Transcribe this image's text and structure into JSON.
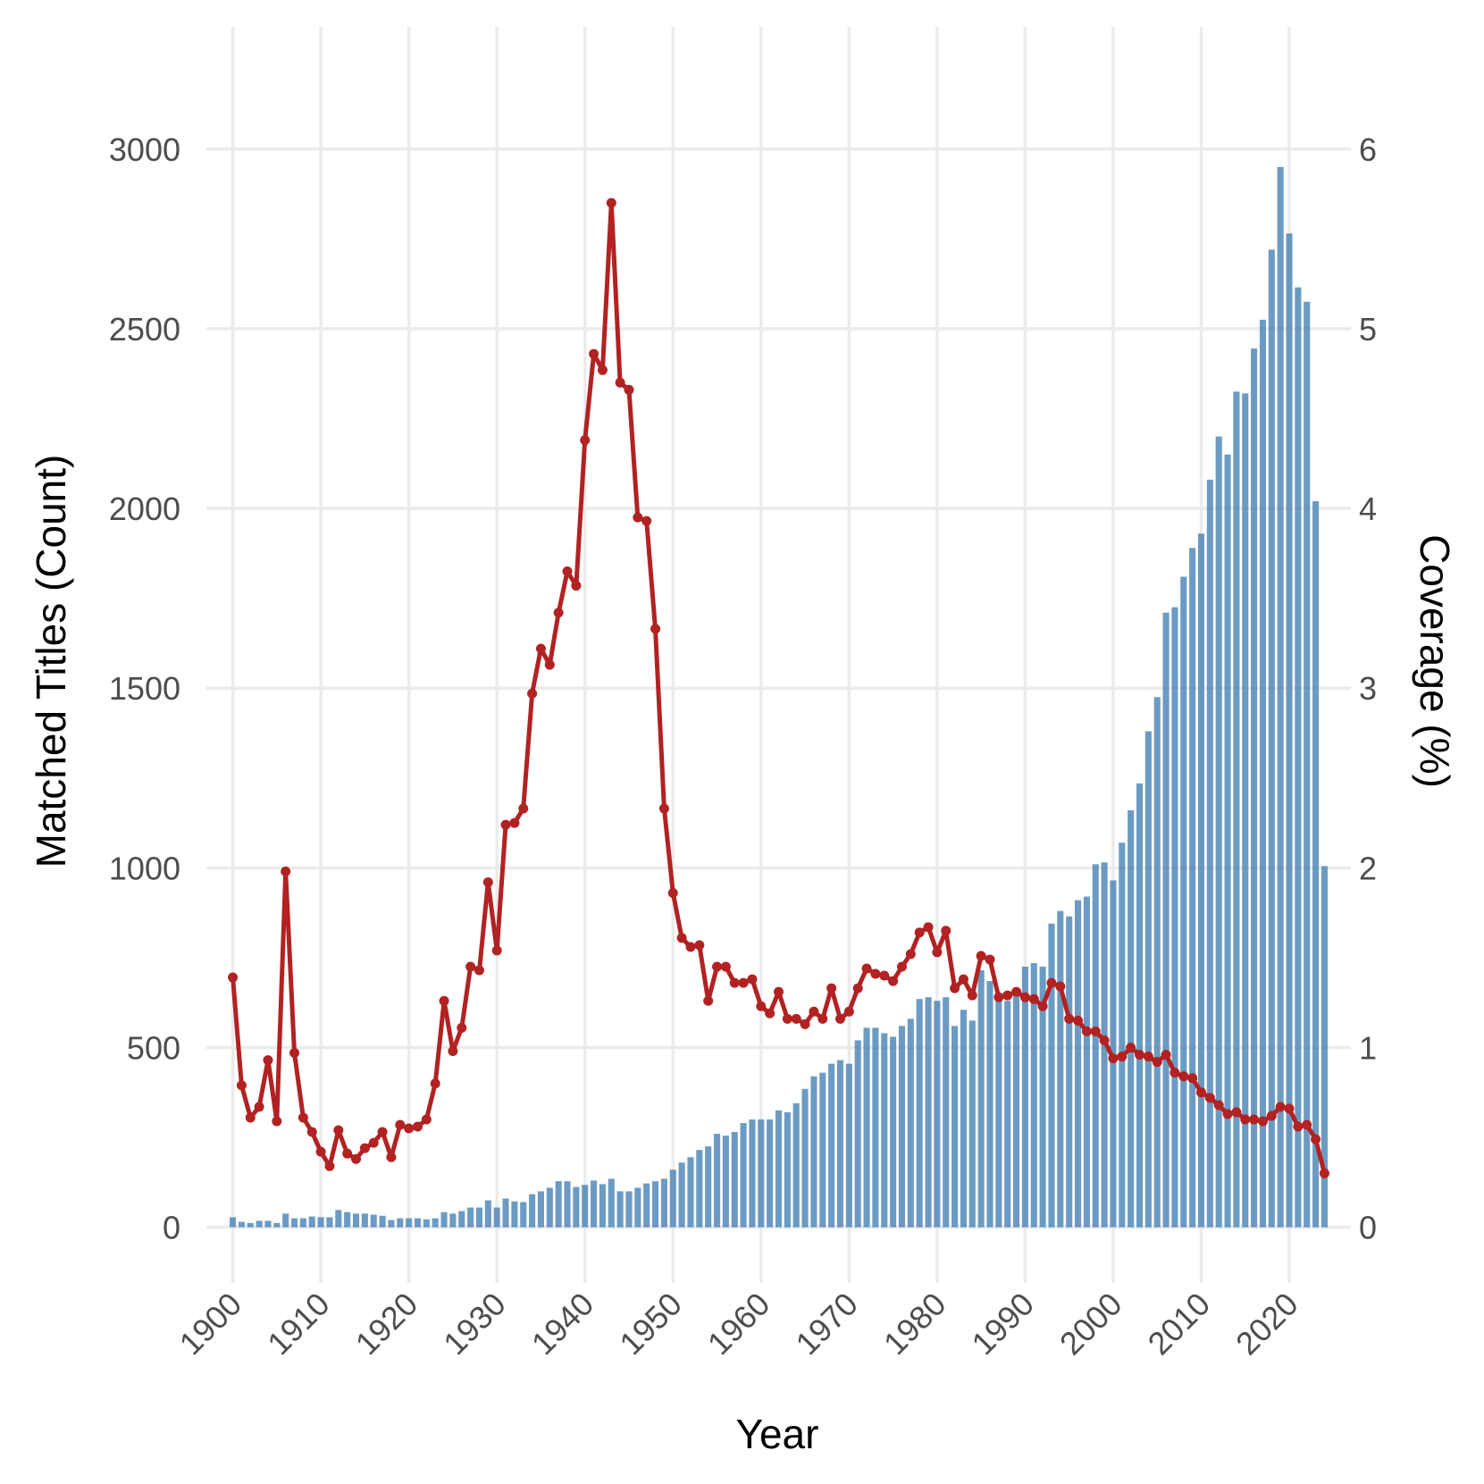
{
  "chart_data": {
    "type": "bar",
    "xlabel": "Year",
    "ylabel": "Matched Titles (Count)",
    "y2label": "Coverage (%)",
    "x_ticks": [
      1900,
      1910,
      1920,
      1930,
      1940,
      1950,
      1960,
      1970,
      1980,
      1990,
      2000,
      2010,
      2020
    ],
    "y_ticks": [
      0,
      500,
      1000,
      1500,
      2000,
      2500,
      3000
    ],
    "y2_ticks": [
      0,
      1,
      2,
      3,
      4,
      5,
      6
    ],
    "xlim": [
      1897,
      2027
    ],
    "ylim": [
      -155,
      3340
    ],
    "y2lim": [
      -0.31,
      6.68
    ],
    "grid": true,
    "colors": {
      "bars": "#4682b4",
      "line": "#b22222",
      "grid": "#ebebeb"
    },
    "years": [
      1900,
      1901,
      1902,
      1903,
      1904,
      1905,
      1906,
      1907,
      1908,
      1909,
      1910,
      1911,
      1912,
      1913,
      1914,
      1915,
      1916,
      1917,
      1918,
      1919,
      1920,
      1921,
      1922,
      1923,
      1924,
      1925,
      1926,
      1927,
      1928,
      1929,
      1930,
      1931,
      1932,
      1933,
      1934,
      1935,
      1936,
      1937,
      1938,
      1939,
      1940,
      1941,
      1942,
      1943,
      1944,
      1945,
      1946,
      1947,
      1948,
      1949,
      1950,
      1951,
      1952,
      1953,
      1954,
      1955,
      1956,
      1957,
      1958,
      1959,
      1960,
      1961,
      1962,
      1963,
      1964,
      1965,
      1966,
      1967,
      1968,
      1969,
      1970,
      1971,
      1972,
      1973,
      1974,
      1975,
      1976,
      1977,
      1978,
      1979,
      1980,
      1981,
      1982,
      1983,
      1984,
      1985,
      1986,
      1987,
      1988,
      1989,
      1990,
      1991,
      1992,
      1993,
      1994,
      1995,
      1996,
      1997,
      1998,
      1999,
      2000,
      2001,
      2002,
      2003,
      2004,
      2005,
      2006,
      2007,
      2008,
      2009,
      2010,
      2011,
      2012,
      2013,
      2014,
      2015,
      2016,
      2017,
      2018,
      2019,
      2020,
      2021,
      2022,
      2023,
      2024
    ],
    "series": [
      {
        "name": "Matched Titles (Count)",
        "type": "bar",
        "axis": "left",
        "values": [
          28,
          15,
          12,
          18,
          18,
          12,
          38,
          25,
          25,
          30,
          28,
          28,
          48,
          42,
          38,
          38,
          35,
          32,
          20,
          25,
          25,
          25,
          22,
          25,
          42,
          38,
          45,
          55,
          55,
          75,
          55,
          80,
          72,
          70,
          92,
          100,
          110,
          128,
          128,
          112,
          118,
          130,
          120,
          135,
          100,
          100,
          110,
          122,
          128,
          135,
          160,
          180,
          195,
          215,
          225,
          260,
          255,
          265,
          290,
          300,
          300,
          300,
          325,
          320,
          345,
          385,
          420,
          430,
          455,
          465,
          455,
          520,
          555,
          555,
          540,
          530,
          560,
          580,
          635,
          640,
          630,
          640,
          560,
          605,
          575,
          715,
          685,
          630,
          630,
          660,
          725,
          735,
          725,
          845,
          880,
          865,
          910,
          920,
          1010,
          1015,
          965,
          1070,
          1160,
          1235,
          1380,
          1475,
          1710,
          1725,
          1810,
          1890,
          1930,
          2080,
          2200,
          2150,
          2325,
          2320,
          2445,
          2525,
          2720,
          2950,
          2765,
          2615,
          2575,
          2020,
          1005
        ]
      },
      {
        "name": "Coverage (%)",
        "type": "line",
        "axis": "right",
        "values": [
          1.39,
          0.79,
          0.61,
          0.67,
          0.93,
          0.59,
          1.98,
          0.97,
          0.61,
          0.53,
          0.42,
          0.34,
          0.54,
          0.41,
          0.38,
          0.44,
          0.47,
          0.53,
          0.39,
          0.57,
          0.55,
          0.56,
          0.6,
          0.8,
          1.26,
          0.98,
          1.11,
          1.45,
          1.43,
          1.92,
          1.54,
          2.24,
          2.25,
          2.33,
          2.97,
          3.22,
          3.13,
          3.42,
          3.65,
          3.57,
          4.38,
          4.86,
          4.77,
          5.7,
          4.7,
          4.66,
          3.95,
          3.93,
          3.33,
          2.33,
          1.86,
          1.61,
          1.56,
          1.57,
          1.26,
          1.45,
          1.45,
          1.36,
          1.36,
          1.38,
          1.23,
          1.19,
          1.31,
          1.16,
          1.16,
          1.13,
          1.2,
          1.16,
          1.33,
          1.16,
          1.2,
          1.33,
          1.44,
          1.41,
          1.4,
          1.37,
          1.45,
          1.52,
          1.64,
          1.67,
          1.53,
          1.65,
          1.33,
          1.38,
          1.29,
          1.51,
          1.49,
          1.28,
          1.29,
          1.31,
          1.28,
          1.27,
          1.23,
          1.36,
          1.34,
          1.16,
          1.15,
          1.09,
          1.09,
          1.04,
          0.94,
          0.95,
          1.0,
          0.96,
          0.95,
          0.92,
          0.96,
          0.86,
          0.84,
          0.83,
          0.75,
          0.72,
          0.68,
          0.63,
          0.64,
          0.6,
          0.6,
          0.59,
          0.62,
          0.67,
          0.66,
          0.56,
          0.57,
          0.49,
          0.3
        ]
      }
    ]
  }
}
